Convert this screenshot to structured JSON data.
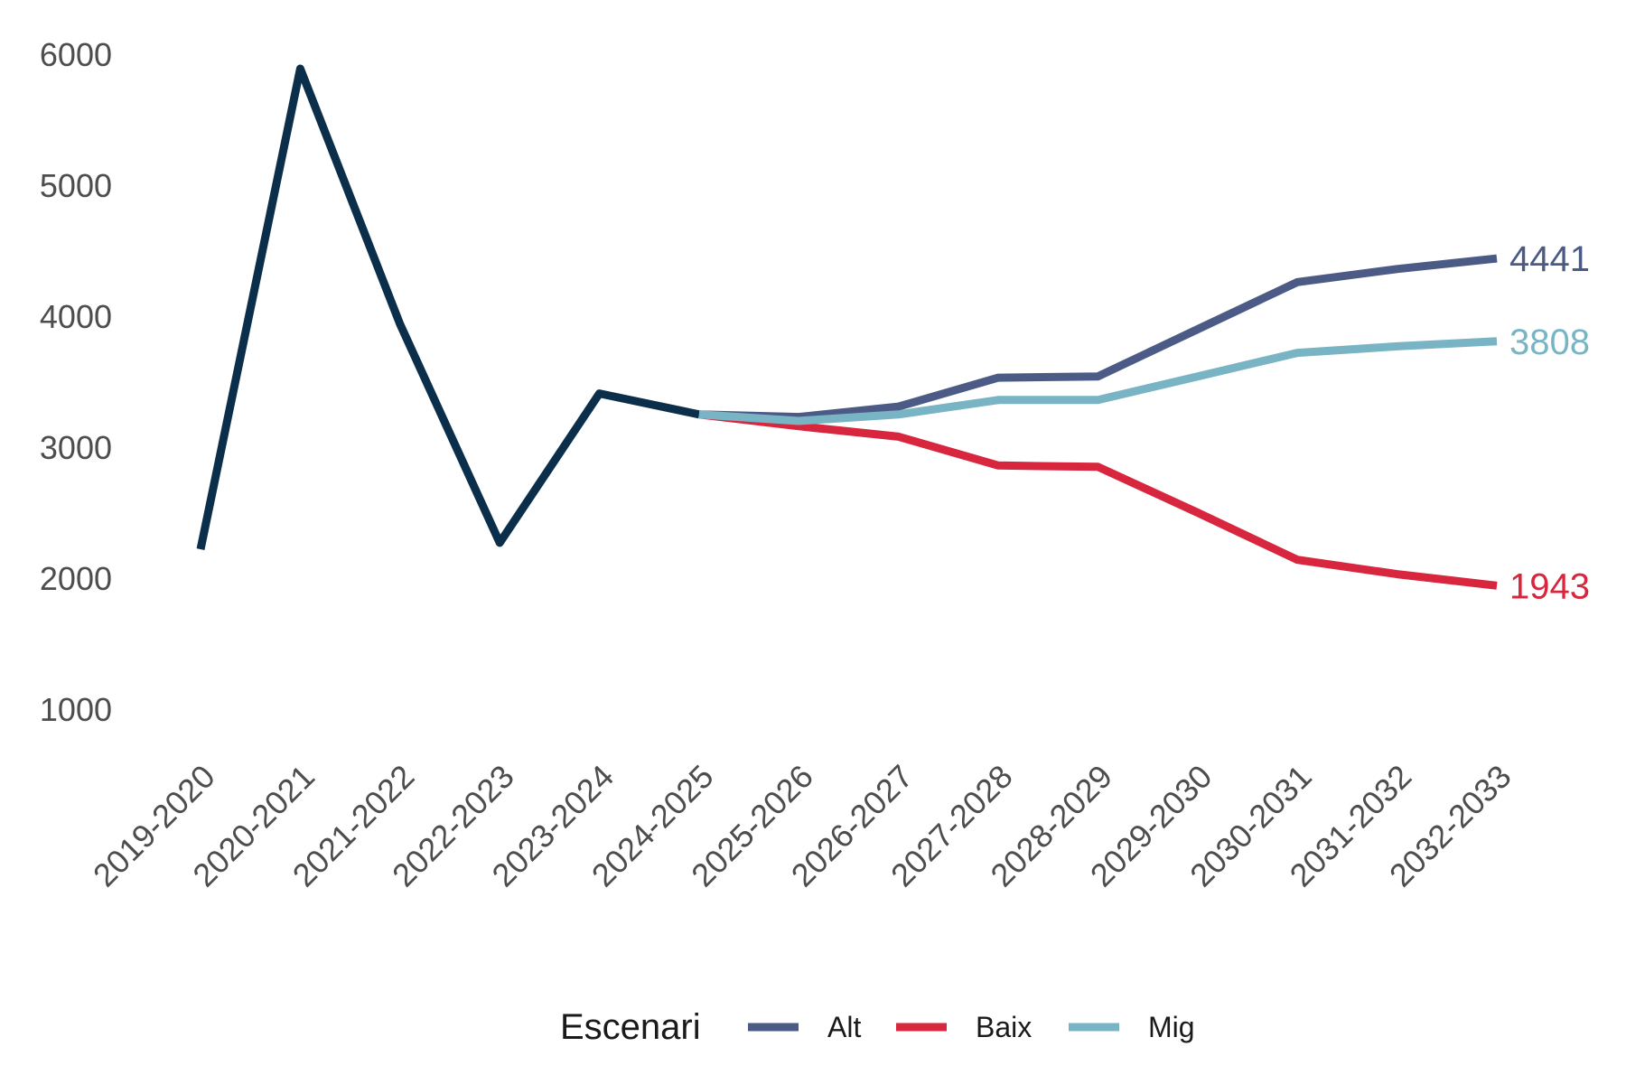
{
  "chart_data": {
    "type": "line",
    "title": "",
    "xlabel": "",
    "ylabel": "",
    "categories": [
      "2019-2020",
      "2020-2021",
      "2021-2022",
      "2022-2023",
      "2023-2024",
      "2024-2025",
      "2025-2026",
      "2026-2027",
      "2027-2028",
      "2028-2029",
      "2029-2030",
      "2030-2031",
      "2031-2032",
      "2032-2033"
    ],
    "y_ticks": [
      1000,
      2000,
      3000,
      4000,
      5000,
      6000
    ],
    "ylim": [
      700,
      6300
    ],
    "grid": false,
    "legend": {
      "title": "Escenari",
      "position": "bottom"
    },
    "series": [
      {
        "key": "historical",
        "color": "#0b2e4a",
        "values": [
          2220,
          5890,
          3940,
          2270,
          3410,
          3250,
          null,
          null,
          null,
          null,
          null,
          null,
          null,
          null
        ]
      },
      {
        "name": "Alt",
        "color": "#4b5b86",
        "end_label": "4441",
        "values": [
          null,
          null,
          null,
          null,
          null,
          3250,
          3230,
          3310,
          3530,
          3540,
          3900,
          4260,
          4360,
          4441
        ]
      },
      {
        "name": "Baix",
        "color": "#d7263d",
        "end_label": "1943",
        "values": [
          null,
          null,
          null,
          null,
          null,
          3250,
          3160,
          3080,
          2860,
          2850,
          2500,
          2140,
          2030,
          1943
        ]
      },
      {
        "name": "Mig",
        "color": "#78b4c3",
        "end_label": "3808",
        "values": [
          null,
          null,
          null,
          null,
          null,
          3250,
          3200,
          3250,
          3360,
          3360,
          3540,
          3720,
          3770,
          3808
        ]
      }
    ]
  }
}
